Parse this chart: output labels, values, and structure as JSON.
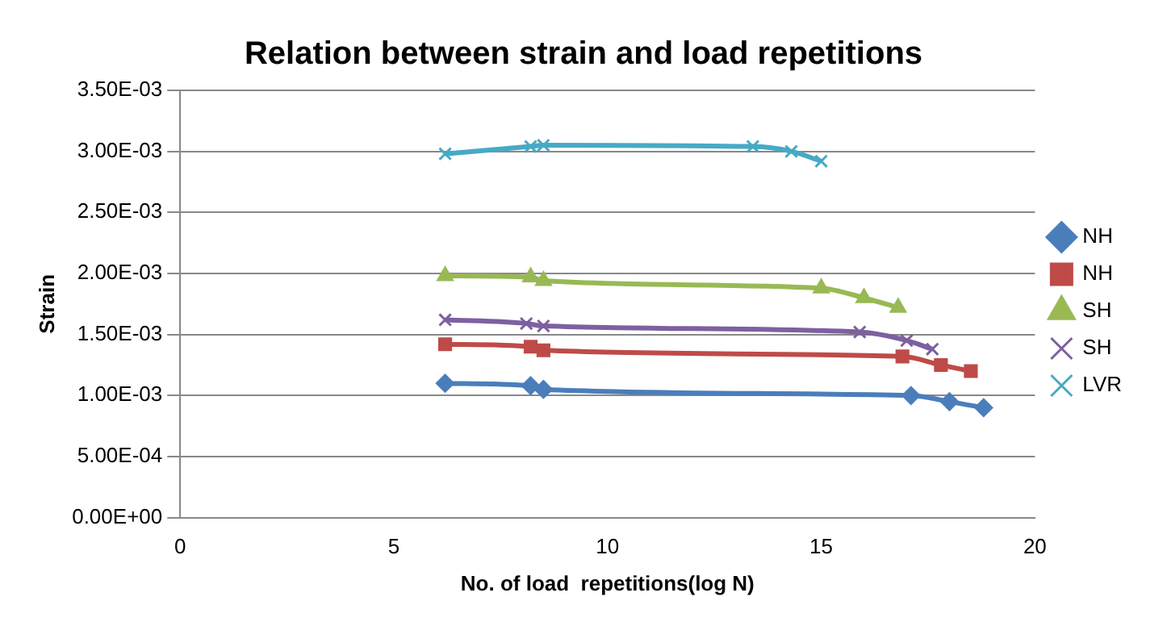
{
  "chart_data": {
    "type": "line",
    "title": "Relation between strain and load repetitions",
    "xlabel": "No. of load  repetitions(log N)",
    "ylabel": "Strain",
    "xlim": [
      0,
      20
    ],
    "xticks": [
      0,
      5,
      10,
      15,
      20
    ],
    "ylim": [
      0,
      0.0035
    ],
    "yticks": [
      {
        "value": 0,
        "label": "0.00E+00"
      },
      {
        "value": 0.0005,
        "label": "5.00E-04"
      },
      {
        "value": 0.001,
        "label": "1.00E-03"
      },
      {
        "value": 0.0015,
        "label": "1.50E-03"
      },
      {
        "value": 0.002,
        "label": "2.00E-03"
      },
      {
        "value": 0.0025,
        "label": "2.50E-03"
      },
      {
        "value": 0.003,
        "label": "3.00E-03"
      },
      {
        "value": 0.0035,
        "label": "3.50E-03"
      }
    ],
    "grid": "y",
    "legend": "right",
    "line_style": "solid",
    "series": [
      {
        "name": "NH",
        "color": "#4a7ebb",
        "marker": "diamond",
        "x": [
          6.2,
          8.2,
          8.5,
          17.1,
          18.0,
          18.8
        ],
        "values": [
          0.0011,
          0.00108,
          0.00105,
          0.001,
          0.00095,
          0.0009
        ]
      },
      {
        "name": "NH",
        "color": "#be4b48",
        "marker": "square",
        "x": [
          6.2,
          8.2,
          8.5,
          16.9,
          17.8,
          18.5
        ],
        "values": [
          0.00142,
          0.0014,
          0.00137,
          0.00132,
          0.00125,
          0.0012
        ]
      },
      {
        "name": "SH",
        "color": "#98b954",
        "marker": "triangle",
        "x": [
          6.2,
          8.2,
          8.5,
          15.0,
          16.0,
          16.8
        ],
        "values": [
          0.00198,
          0.00197,
          0.00194,
          0.00188,
          0.0018,
          0.00172
        ]
      },
      {
        "name": "SH",
        "color": "#7d60a0",
        "marker": "cross",
        "x": [
          6.2,
          8.1,
          8.5,
          15.9,
          17.0,
          17.6
        ],
        "values": [
          0.00162,
          0.00159,
          0.00157,
          0.00152,
          0.00145,
          0.00138
        ]
      },
      {
        "name": "LVR",
        "color": "#46aac5",
        "marker": "cross",
        "x": [
          6.2,
          8.2,
          8.5,
          13.4,
          14.3,
          15.0
        ],
        "values": [
          0.00298,
          0.00304,
          0.00305,
          0.00304,
          0.003,
          0.00292
        ]
      }
    ]
  }
}
